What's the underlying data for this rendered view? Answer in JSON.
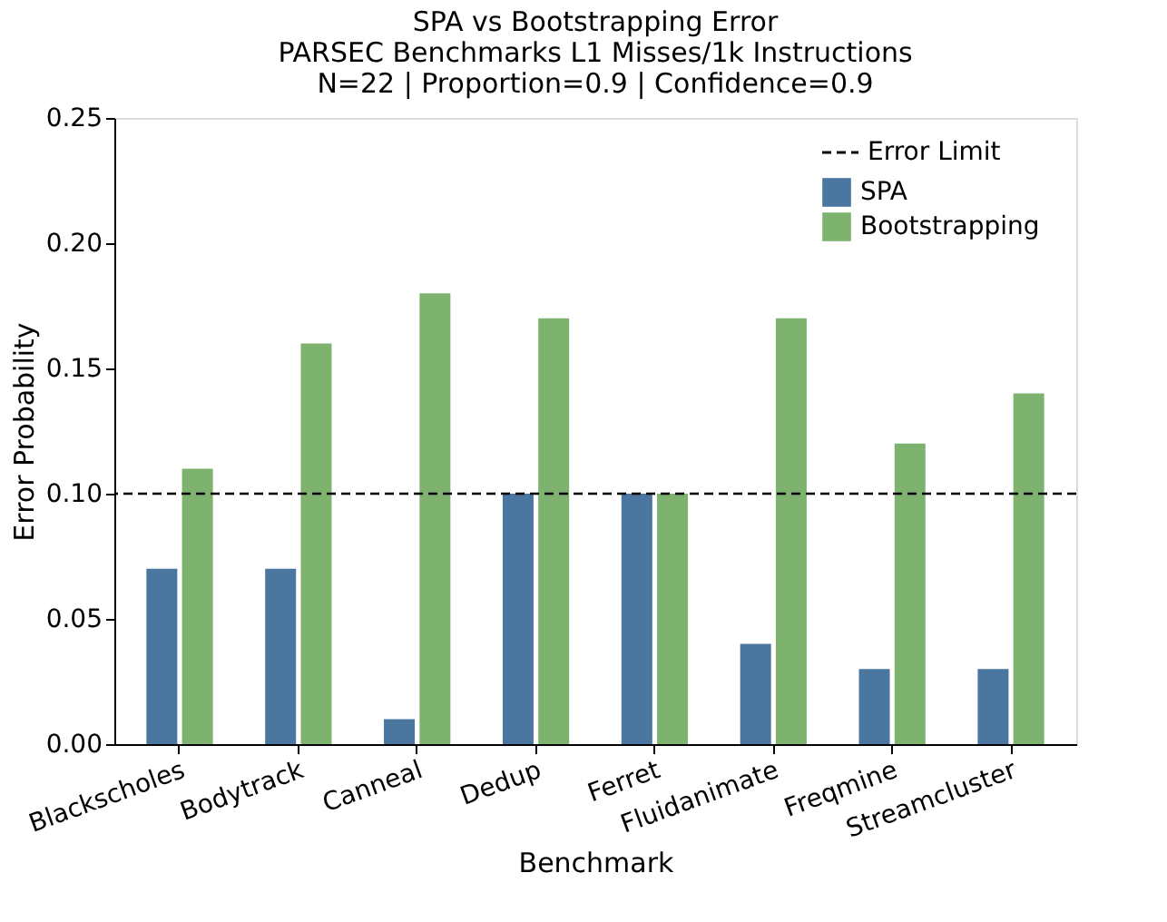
{
  "chart_data": {
    "type": "bar",
    "title": "SPA vs Bootstrapping Error",
    "subtitle": "PARSEC Benchmarks L1 Misses/1k Instructions\nN=22 | Proportion=0.9 | Confidence=0.9",
    "xlabel": "Benchmark",
    "ylabel": "Error Probability",
    "categories": [
      "Blackscholes",
      "Bodytrack",
      "Canneal",
      "Dedup",
      "Ferret",
      "Fluidanimate",
      "Freqmine",
      "Streamcluster"
    ],
    "series": [
      {
        "name": "SPA",
        "color": "#4a76a0",
        "values": [
          0.07,
          0.07,
          0.01,
          0.1,
          0.1,
          0.04,
          0.03,
          0.03
        ]
      },
      {
        "name": "Bootstrapping",
        "color": "#7eb26f",
        "values": [
          0.11,
          0.16,
          0.18,
          0.17,
          0.1,
          0.17,
          0.12,
          0.14
        ]
      }
    ],
    "ylim": [
      0,
      0.25
    ],
    "yticks": [
      {
        "value": 0,
        "label": "0.00"
      },
      {
        "value": 0.05,
        "label": "0.05"
      },
      {
        "value": 0.1,
        "label": "0.10"
      },
      {
        "value": 0.15,
        "label": "0.15"
      },
      {
        "value": 0.2,
        "label": "0.20"
      },
      {
        "value": 0.25,
        "label": "0.25"
      }
    ],
    "ref_lines": [
      {
        "axis": "y",
        "value": 0.1,
        "label": "Error Limit",
        "color": "#000000",
        "line_style": "dashed"
      }
    ],
    "legend": "top right",
    "grid": false
  }
}
